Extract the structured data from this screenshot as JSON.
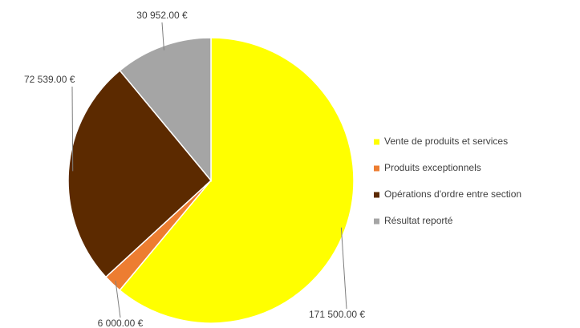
{
  "chart_data": {
    "type": "pie",
    "categories": [
      "Vente de produits et services",
      "Produits exceptionnels",
      "Opérations d'ordre entre section",
      "Résultat reporté"
    ],
    "values": [
      171500,
      6000,
      72539,
      30952
    ],
    "value_labels": [
      "171 500.00 €",
      "6 000.00 €",
      "72 539.00 €",
      "30 952.00 €"
    ],
    "colors": [
      "#ffff00",
      "#ed7d31",
      "#5c2a00",
      "#a5a5a5"
    ],
    "legend": "right"
  }
}
